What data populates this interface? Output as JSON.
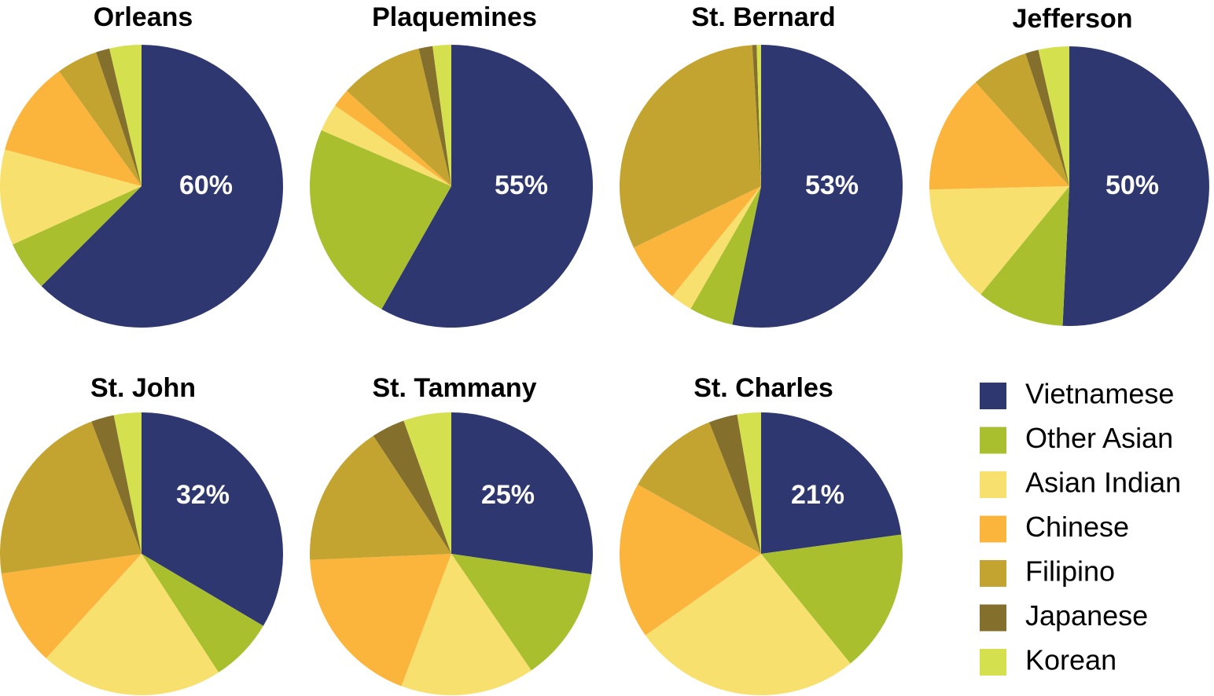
{
  "chart_data": {
    "type": "pie",
    "legend": {
      "placement": "bottom-right",
      "items": [
        {
          "label": "Vietnamese",
          "color": "#2e376f"
        },
        {
          "label": "Other Asian",
          "color": "#a9bf2d"
        },
        {
          "label": "Asian Indian",
          "color": "#f8e06f"
        },
        {
          "label": "Chinese",
          "color": "#fbb43c"
        },
        {
          "label": "Filipino",
          "color": "#c3a431"
        },
        {
          "label": "Japanese",
          "color": "#84702c"
        },
        {
          "label": "Korean",
          "color": "#d5e04f"
        }
      ]
    },
    "charts": [
      {
        "title": "Orleans",
        "label": "60%",
        "values": [
          60,
          5.5,
          10.5,
          10.5,
          4.5,
          1.5,
          3.5
        ]
      },
      {
        "title": "Plaquemines",
        "label": "55%",
        "values": [
          55,
          22,
          3,
          2,
          9,
          1.5,
          2
        ]
      },
      {
        "title": "St. Bernard",
        "label": "53%",
        "values": [
          53,
          5,
          2.5,
          7,
          31,
          0.5,
          0.5
        ]
      },
      {
        "title": "Jefferson",
        "label": "50%",
        "values": [
          50,
          10,
          13.5,
          13.5,
          6.5,
          1.5,
          3.5
        ]
      },
      {
        "title": "St. John",
        "label": "32%",
        "values": [
          32,
          7,
          20,
          10.5,
          20.5,
          2.5,
          3
        ]
      },
      {
        "title": "St. Tammany",
        "label": "25%",
        "values": [
          25,
          12,
          14,
          17,
          15,
          3.5,
          5
        ]
      },
      {
        "title": "St. Charles",
        "label": "21%",
        "values": [
          21,
          15,
          24,
          16.5,
          10,
          3,
          2.5
        ]
      }
    ]
  }
}
